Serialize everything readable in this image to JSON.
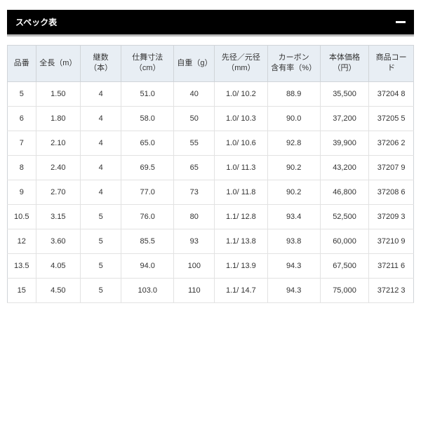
{
  "header": {
    "title": "スペック表"
  },
  "table": {
    "columns": [
      "品番",
      "全長（m）",
      "継数（本）",
      "仕舞寸法（cm）",
      "自重（g）",
      "先径／元径\n（mm）",
      "カーボン\n含有率（%）",
      "本体価格（円）",
      "商品コード"
    ],
    "rows": [
      [
        "5",
        "1.50",
        "4",
        "51.0",
        "40",
        "1.0/ 10.2",
        "88.9",
        "35,500",
        "37204 8"
      ],
      [
        "6",
        "1.80",
        "4",
        "58.0",
        "50",
        "1.0/ 10.3",
        "90.0",
        "37,200",
        "37205 5"
      ],
      [
        "7",
        "2.10",
        "4",
        "65.0",
        "55",
        "1.0/ 10.6",
        "92.8",
        "39,900",
        "37206 2"
      ],
      [
        "8",
        "2.40",
        "4",
        "69.5",
        "65",
        "1.0/ 11.3",
        "90.2",
        "43,200",
        "37207 9"
      ],
      [
        "9",
        "2.70",
        "4",
        "77.0",
        "73",
        "1.0/ 11.8",
        "90.2",
        "46,800",
        "37208 6"
      ],
      [
        "10.5",
        "3.15",
        "5",
        "76.0",
        "80",
        "1.1/ 12.8",
        "93.4",
        "52,500",
        "37209 3"
      ],
      [
        "12",
        "3.60",
        "5",
        "85.5",
        "93",
        "1.1/ 13.8",
        "93.8",
        "60,000",
        "37210 9"
      ],
      [
        "13.5",
        "4.05",
        "5",
        "94.0",
        "100",
        "1.1/ 13.9",
        "94.3",
        "67,500",
        "37211 6"
      ],
      [
        "15",
        "4.50",
        "5",
        "103.0",
        "110",
        "1.1/ 14.7",
        "94.3",
        "75,000",
        "37212 3"
      ]
    ],
    "header_bg": "#e8eef4",
    "border_color": "#d0d4d8",
    "col_widths_pct": [
      7,
      11,
      10,
      13,
      10,
      13,
      13,
      12,
      11
    ]
  }
}
